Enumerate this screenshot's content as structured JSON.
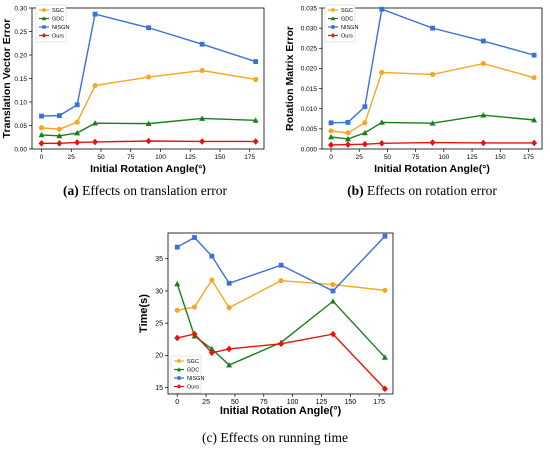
{
  "series_styles": [
    {
      "key": "sgc",
      "color": "#f5a623",
      "marker": "circle"
    },
    {
      "key": "gdc",
      "color": "#1a7f1a",
      "marker": "triangle"
    },
    {
      "key": "nisgn",
      "color": "#3a6fdc",
      "marker": "square"
    },
    {
      "key": "ours",
      "color": "#e3140c",
      "marker": "diamond"
    }
  ],
  "captions": {
    "a": {
      "tag": "(a)",
      "text": "Effects on translation error"
    },
    "b": {
      "tag": "(b)",
      "text": "Effects on rotation error"
    },
    "c": {
      "tag": "(c)",
      "text": "Effects on running time"
    }
  },
  "chart_data": [
    {
      "id": "a",
      "type": "line",
      "title": "",
      "xlabel": "Initial Rotation Angle(°)",
      "ylabel": "Translation Vector Error",
      "x": [
        0,
        15,
        30,
        45,
        90,
        135,
        180
      ],
      "xticks": [
        0,
        25,
        50,
        75,
        100,
        125,
        150,
        175
      ],
      "xlim": [
        -8,
        187
      ],
      "ylim": [
        0,
        0.3
      ],
      "yticks": [
        0.0,
        0.05,
        0.1,
        0.15,
        0.2,
        0.25,
        0.3
      ],
      "yticklabels": [
        "0.00",
        "0.05",
        "0.10",
        "0.15",
        "0.20",
        "0.25",
        "0.30"
      ],
      "legend": "top-left",
      "series": [
        {
          "name": "SGC",
          "values": [
            0.045,
            0.042,
            0.057,
            0.135,
            0.153,
            0.167,
            0.148
          ]
        },
        {
          "name": "GDC",
          "values": [
            0.03,
            0.028,
            0.034,
            0.055,
            0.054,
            0.065,
            0.061
          ]
        },
        {
          "name": "NISGN",
          "values": [
            0.07,
            0.071,
            0.094,
            0.287,
            0.258,
            0.223,
            0.186
          ]
        },
        {
          "name": "Ours",
          "values": [
            0.012,
            0.012,
            0.014,
            0.015,
            0.017,
            0.016,
            0.016
          ]
        }
      ]
    },
    {
      "id": "b",
      "type": "line",
      "title": "",
      "xlabel": "Initial Rotation Angle(°)",
      "ylabel": "Rotation Matrix Error",
      "x": [
        0,
        15,
        30,
        45,
        90,
        135,
        180
      ],
      "xticks": [
        0,
        25,
        50,
        75,
        100,
        125,
        150,
        175
      ],
      "xlim": [
        -8,
        187
      ],
      "ylim": [
        0,
        0.035
      ],
      "yticks": [
        0.0,
        0.005,
        0.01,
        0.015,
        0.02,
        0.025,
        0.03,
        0.035
      ],
      "yticklabels": [
        "0.000",
        "0.005",
        "0.010",
        "0.015",
        "0.020",
        "0.025",
        "0.030",
        "0.035"
      ],
      "legend": "top-left",
      "series": [
        {
          "name": "SGC",
          "values": [
            0.0045,
            0.004,
            0.0065,
            0.019,
            0.0185,
            0.0212,
            0.0177
          ]
        },
        {
          "name": "GDC",
          "values": [
            0.003,
            0.0025,
            0.004,
            0.0066,
            0.0064,
            0.0084,
            0.0072
          ]
        },
        {
          "name": "NISGN",
          "values": [
            0.0065,
            0.0066,
            0.0105,
            0.0347,
            0.03,
            0.0268,
            0.0233
          ]
        },
        {
          "name": "Ours",
          "values": [
            0.001,
            0.0011,
            0.0012,
            0.0014,
            0.0016,
            0.0015,
            0.0015
          ]
        }
      ]
    },
    {
      "id": "c",
      "type": "line",
      "title": "",
      "xlabel": "Initial Rotation Angle(°)",
      "ylabel": "Time(s)",
      "x": [
        0,
        15,
        30,
        45,
        90,
        135,
        180
      ],
      "xticks": [
        0,
        25,
        50,
        75,
        100,
        125,
        150,
        175
      ],
      "xlim": [
        -8,
        187
      ],
      "ylim": [
        14,
        39
      ],
      "yticks": [
        15,
        20,
        25,
        30,
        35
      ],
      "yticklabels": [
        "15",
        "20",
        "25",
        "30",
        "35"
      ],
      "legend": "bottom-left",
      "series": [
        {
          "name": "SGC",
          "values": [
            27.0,
            27.5,
            31.7,
            27.4,
            31.6,
            31.0,
            30.1
          ]
        },
        {
          "name": "GDC",
          "values": [
            31.1,
            23.0,
            21.0,
            18.5,
            22.0,
            28.4,
            19.7
          ]
        },
        {
          "name": "NISGN",
          "values": [
            36.8,
            38.3,
            35.4,
            31.2,
            34.0,
            30.0,
            38.5
          ]
        },
        {
          "name": "Ours",
          "values": [
            22.7,
            23.3,
            20.4,
            21.0,
            21.8,
            23.3,
            14.8
          ]
        }
      ]
    }
  ]
}
